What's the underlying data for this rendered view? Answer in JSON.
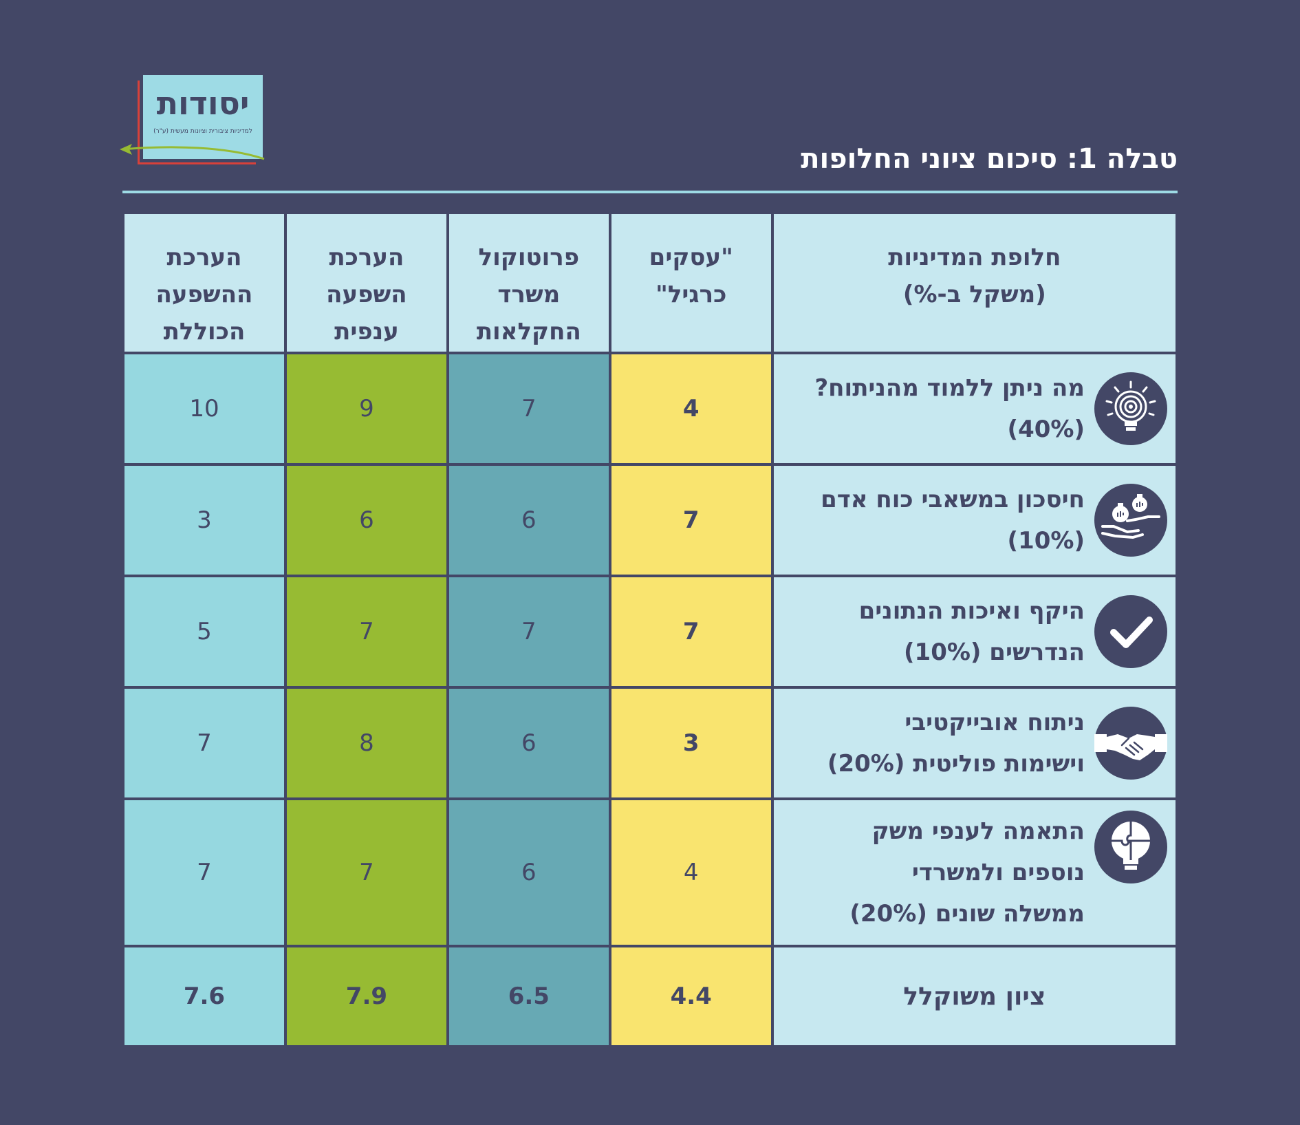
{
  "logo": {
    "name": "יסודות",
    "subtitle": "למדיניות ציבורית וציונות מעשית (ע\"ר)",
    "colors": {
      "box": "#9edbe5",
      "red": "#d8413a",
      "green": "#97bb33"
    }
  },
  "title": "טבלה 1: סיכום ציוני החלופות",
  "table": {
    "columns": [
      {
        "label_lines": [
          "חלופת המדיניות",
          "(משקל ב-%)"
        ]
      },
      {
        "label_lines": [
          "\"עסקים",
          "כרגיל\""
        ]
      },
      {
        "label_lines": [
          "פרוטוקול",
          "משרד",
          "החקלאות"
        ]
      },
      {
        "label_lines": [
          "הערכת",
          "השפעה",
          "ענפית"
        ]
      },
      {
        "label_lines": [
          "הערכת",
          "ההשפעה",
          "הכוללת"
        ]
      }
    ],
    "column_colors": [
      "#c7e8f0",
      "#f9e46f",
      "#67a9b4",
      "#97bb33",
      "#96d8e0"
    ],
    "rows": [
      {
        "icon": "lightbulb-target-icon",
        "label_lines": [
          "מה ניתן ללמוד מהניתוח?",
          "(40%)"
        ],
        "scores": [
          "4",
          "7",
          "9",
          "10"
        ]
      },
      {
        "icon": "money-bags-hands-icon",
        "label_lines": [
          "חיסכון במשאבי כוח אדם",
          "(10%)"
        ],
        "scores": [
          "7",
          "6",
          "6",
          "3"
        ]
      },
      {
        "icon": "checkmark-icon",
        "label_lines": [
          "היקף ואיכות הנתונים",
          "הנדרשים (10%)"
        ],
        "scores": [
          "7",
          "7",
          "7",
          "5"
        ]
      },
      {
        "icon": "handshake-icon",
        "label_lines": [
          "ניתוח אובייקטיבי",
          "וישימות פוליטית (20%)"
        ],
        "scores": [
          "3",
          "6",
          "8",
          "7"
        ]
      },
      {
        "icon": "puzzle-lightbulb-icon",
        "label_lines": [
          "התאמה לענפי משק",
          "נוספים ולמשרדי",
          "ממשלה שונים (20%)"
        ],
        "scores": [
          "4",
          "6",
          "7",
          "7"
        ]
      }
    ],
    "total": {
      "label": "ציון משוקלל",
      "scores": [
        "4.4",
        "6.5",
        "7.9",
        "7.6"
      ]
    }
  }
}
